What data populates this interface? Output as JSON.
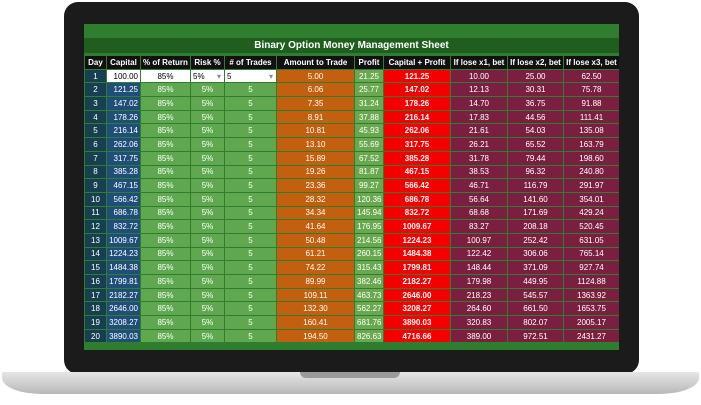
{
  "title": "Binary Option Money Management Sheet",
  "headers": [
    "Day",
    "Capital",
    "% of Return",
    "Risk %",
    "# of Trades",
    "Amount to Trade",
    "Profit",
    "Capital + Profit",
    "If lose x1, bet",
    "If lose x2, bet",
    "If lose x3, bet"
  ],
  "rows": [
    [
      "1",
      "100.00",
      "85%",
      "5%",
      "5",
      "5.00",
      "21.25",
      "121.25",
      "10.00",
      "25.00",
      "62.50"
    ],
    [
      "2",
      "121.25",
      "85%",
      "5%",
      "5",
      "6.06",
      "25.77",
      "147.02",
      "12.13",
      "30.31",
      "75.78"
    ],
    [
      "3",
      "147.02",
      "85%",
      "5%",
      "5",
      "7.35",
      "31.24",
      "178.26",
      "14.70",
      "36.75",
      "91.88"
    ],
    [
      "4",
      "178.26",
      "85%",
      "5%",
      "5",
      "8.91",
      "37.88",
      "216.14",
      "17.83",
      "44.56",
      "111.41"
    ],
    [
      "5",
      "216.14",
      "85%",
      "5%",
      "5",
      "10.81",
      "45.93",
      "262.06",
      "21.61",
      "54.03",
      "135.08"
    ],
    [
      "6",
      "262.06",
      "85%",
      "5%",
      "5",
      "13.10",
      "55.69",
      "317.75",
      "26.21",
      "65.52",
      "163.79"
    ],
    [
      "7",
      "317.75",
      "85%",
      "5%",
      "5",
      "15.89",
      "67.52",
      "385.28",
      "31.78",
      "79.44",
      "198.60"
    ],
    [
      "8",
      "385.28",
      "85%",
      "5%",
      "5",
      "19.26",
      "81.87",
      "467.15",
      "38.53",
      "96.32",
      "240.80"
    ],
    [
      "9",
      "467.15",
      "85%",
      "5%",
      "5",
      "23.36",
      "99.27",
      "566.42",
      "46.71",
      "116.79",
      "291.97"
    ],
    [
      "10",
      "566.42",
      "85%",
      "5%",
      "5",
      "28.32",
      "120.36",
      "686.78",
      "56.64",
      "141.60",
      "354.01"
    ],
    [
      "11",
      "686.78",
      "85%",
      "5%",
      "5",
      "34.34",
      "145.94",
      "832.72",
      "68.68",
      "171.69",
      "429.24"
    ],
    [
      "12",
      "832.72",
      "85%",
      "5%",
      "5",
      "41.64",
      "176.95",
      "1009.67",
      "83.27",
      "208.18",
      "520.45"
    ],
    [
      "13",
      "1009.67",
      "85%",
      "5%",
      "5",
      "50.48",
      "214.56",
      "1224.23",
      "100.97",
      "252.42",
      "631.05"
    ],
    [
      "14",
      "1224.23",
      "85%",
      "5%",
      "5",
      "61.21",
      "260.15",
      "1484.38",
      "122.42",
      "306.06",
      "765.14"
    ],
    [
      "15",
      "1484.38",
      "85%",
      "5%",
      "5",
      "74.22",
      "315.43",
      "1799.81",
      "148.44",
      "371.09",
      "927.74"
    ],
    [
      "16",
      "1799.81",
      "85%",
      "5%",
      "5",
      "89.99",
      "382.46",
      "2182.27",
      "179.98",
      "449.95",
      "1124.88"
    ],
    [
      "17",
      "2182.27",
      "85%",
      "5%",
      "5",
      "109.11",
      "463.73",
      "2646.00",
      "218.23",
      "545.57",
      "1363.92"
    ],
    [
      "18",
      "2646.00",
      "85%",
      "5%",
      "5",
      "132.30",
      "562.27",
      "3208.27",
      "264.60",
      "661.50",
      "1653.75"
    ],
    [
      "19",
      "3208.27",
      "85%",
      "5%",
      "5",
      "160.41",
      "681.76",
      "3890.03",
      "320.83",
      "802.07",
      "2005.17"
    ],
    [
      "20",
      "3890.03",
      "85%",
      "5%",
      "5",
      "194.50",
      "826.63",
      "4716.66",
      "389.00",
      "972.51",
      "2431.27"
    ]
  ]
}
